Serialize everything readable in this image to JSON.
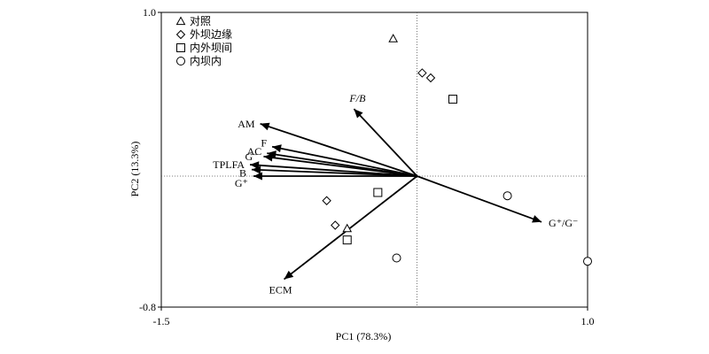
{
  "chart_data": {
    "type": "scatter",
    "subtype": "pca-biplot",
    "xlabel": "PC1 (78.3%)",
    "ylabel": "PC2 (13.3%)",
    "xlim": [
      -1.5,
      1.0
    ],
    "ylim": [
      -0.8,
      1.0
    ],
    "x_tick_labels": [
      "-1.5",
      "1.0"
    ],
    "y_tick_labels": [
      "1.0",
      "-0.8"
    ],
    "reference_lines": {
      "x0": true,
      "y0": true,
      "style": "dotted"
    },
    "legend": {
      "placement": "top-left",
      "entries": [
        {
          "marker": "triangle",
          "label": "对照"
        },
        {
          "marker": "diamond",
          "label": "外坝边缘"
        },
        {
          "marker": "square",
          "label": "内外坝间"
        },
        {
          "marker": "circle",
          "label": "内坝内"
        }
      ]
    },
    "vectors": [
      {
        "label": "AM",
        "x": -0.92,
        "y": 0.32
      },
      {
        "label": "F/B",
        "x": -0.37,
        "y": 0.41,
        "italic": true
      },
      {
        "label": "F",
        "x": -0.85,
        "y": 0.18
      },
      {
        "label": "AC",
        "x": -0.88,
        "y": 0.14
      },
      {
        "label": "G⁻",
        "x": -0.9,
        "y": 0.12
      },
      {
        "label": "TPLFA",
        "x": -0.98,
        "y": 0.07
      },
      {
        "label": "B",
        "x": -0.97,
        "y": 0.04
      },
      {
        "label": "G⁺",
        "x": -0.96,
        "y": 0.0
      },
      {
        "label": "G⁺/G⁻",
        "x": 0.73,
        "y": -0.28
      },
      {
        "label": "ECM",
        "x": -0.78,
        "y": -0.63
      }
    ],
    "series": [
      {
        "marker": "triangle",
        "points": [
          [
            -0.14,
            0.84
          ],
          [
            -0.41,
            -0.32
          ]
        ]
      },
      {
        "marker": "diamond",
        "points": [
          [
            0.03,
            0.63
          ],
          [
            0.08,
            0.6
          ],
          [
            -0.53,
            -0.15
          ],
          [
            -0.48,
            -0.3
          ]
        ]
      },
      {
        "marker": "square",
        "points": [
          [
            0.21,
            0.47
          ],
          [
            -0.23,
            -0.1
          ],
          [
            -0.41,
            -0.39
          ]
        ]
      },
      {
        "marker": "circle",
        "points": [
          [
            0.53,
            -0.12
          ],
          [
            -0.12,
            -0.5
          ],
          [
            1.0,
            -0.52
          ]
        ]
      }
    ]
  }
}
